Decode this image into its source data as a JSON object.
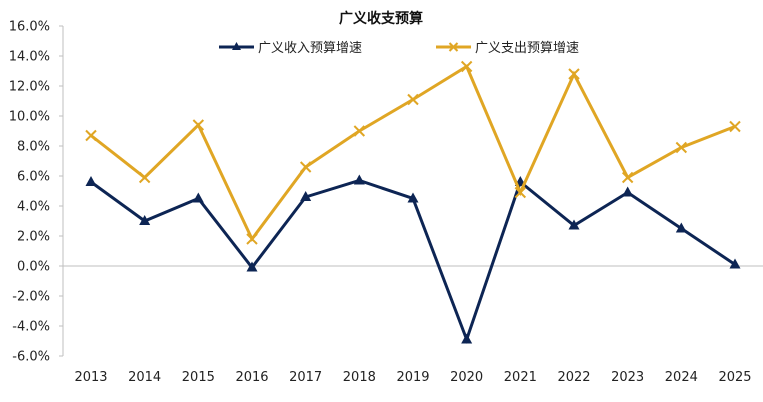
{
  "chart_data": {
    "type": "line",
    "title": "广义收支预算",
    "xlabel": "",
    "ylabel": "",
    "categories": [
      "2013",
      "2014",
      "2015",
      "2016",
      "2017",
      "2018",
      "2019",
      "2020",
      "2021",
      "2022",
      "2023",
      "2024",
      "2025"
    ],
    "ylim": [
      -6,
      16
    ],
    "y_ticks": [
      "16.0%",
      "14.0%",
      "12.0%",
      "10.0%",
      "8.0%",
      "6.0%",
      "4.0%",
      "2.0%",
      "0.0%",
      "-2.0%",
      "-4.0%",
      "-6.0%"
    ],
    "y_tick_values": [
      16,
      14,
      12,
      10,
      8,
      6,
      4,
      2,
      0,
      -2,
      -4,
      -6
    ],
    "grid": false,
    "legend_position": "top",
    "series": [
      {
        "name": "广义收入预算增速",
        "color": "#0d2554",
        "marker": "triangle",
        "values": [
          5.6,
          3.0,
          4.5,
          -0.1,
          4.6,
          5.7,
          4.5,
          -4.9,
          5.6,
          2.7,
          4.9,
          2.5,
          0.1
        ]
      },
      {
        "name": "广义支出预算增速",
        "color": "#e0a624",
        "marker": "x",
        "values": [
          8.7,
          5.9,
          9.4,
          1.8,
          6.6,
          9.0,
          11.1,
          13.3,
          4.9,
          12.8,
          5.9,
          7.9,
          9.3
        ]
      }
    ]
  }
}
